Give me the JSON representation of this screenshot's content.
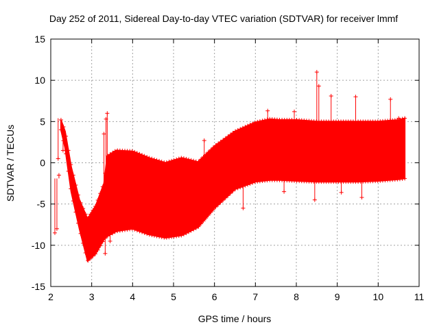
{
  "chart_data": {
    "type": "scatter",
    "title": "Day 252 of 2011, Sidereal Day-to-day VTEC variation (SDTVAR) for receiver lmmf",
    "xlabel": "GPS time / hours",
    "ylabel": "SDTVAR / TECUs",
    "xlim": [
      2,
      11
    ],
    "ylim": [
      -15,
      15
    ],
    "xticks": [
      "2",
      "3",
      "4",
      "5",
      "6",
      "7",
      "8",
      "9",
      "10",
      "11"
    ],
    "yticks": [
      "-15",
      "-10",
      "-5",
      "0",
      "5",
      "10",
      "15"
    ],
    "grid": true,
    "series_color": "#ff0000",
    "marker": "+",
    "envelope": {
      "x": [
        2.25,
        2.35,
        2.5,
        2.7,
        2.9,
        3.1,
        3.3,
        3.38,
        3.6,
        4.0,
        4.4,
        4.8,
        5.2,
        5.6,
        6.0,
        6.5,
        7.0,
        7.35,
        7.6,
        8.0,
        8.5,
        9.0,
        9.5,
        10.0,
        10.5,
        10.65
      ],
      "upper": [
        5.2,
        3.8,
        -0.5,
        -4.5,
        -6.8,
        -5.2,
        -2.5,
        0.8,
        1.5,
        1.4,
        0.6,
        0.0,
        0.6,
        0.1,
        2.0,
        3.8,
        4.9,
        5.3,
        5.2,
        5.2,
        5.0,
        5.0,
        5.0,
        5.0,
        5.2,
        5.4
      ],
      "lower": [
        4.0,
        1.8,
        -3.5,
        -8.0,
        -11.9,
        -11.0,
        -9.3,
        -8.9,
        -8.3,
        -8.0,
        -8.7,
        -9.1,
        -8.8,
        -7.8,
        -5.5,
        -3.2,
        -2.3,
        -2.1,
        -2.1,
        -2.2,
        -2.3,
        -2.3,
        -2.3,
        -2.2,
        -2.0,
        -1.9
      ]
    },
    "outliers": [
      {
        "x": 2.1,
        "y": -8.5
      },
      {
        "x": 2.15,
        "y": -8.0
      },
      {
        "x": 2.2,
        "y": -1.5
      },
      {
        "x": 2.3,
        "y": 1.5
      },
      {
        "x": 2.18,
        "y": 0.5
      },
      {
        "x": 3.3,
        "y": 3.5
      },
      {
        "x": 3.35,
        "y": 5.3
      },
      {
        "x": 3.38,
        "y": 6.0
      },
      {
        "x": 3.33,
        "y": -11.0
      },
      {
        "x": 3.45,
        "y": -9.5
      },
      {
        "x": 5.75,
        "y": 2.7
      },
      {
        "x": 6.7,
        "y": -5.5
      },
      {
        "x": 7.3,
        "y": 6.3
      },
      {
        "x": 7.7,
        "y": -3.5
      },
      {
        "x": 7.95,
        "y": 6.2
      },
      {
        "x": 8.45,
        "y": -4.5
      },
      {
        "x": 8.5,
        "y": 11.0
      },
      {
        "x": 8.55,
        "y": 9.3
      },
      {
        "x": 8.85,
        "y": 8.1
      },
      {
        "x": 9.1,
        "y": -3.6
      },
      {
        "x": 9.45,
        "y": 8.0
      },
      {
        "x": 9.6,
        "y": -4.2
      },
      {
        "x": 10.3,
        "y": 7.7
      },
      {
        "x": 10.5,
        "y": 5.4
      }
    ]
  }
}
